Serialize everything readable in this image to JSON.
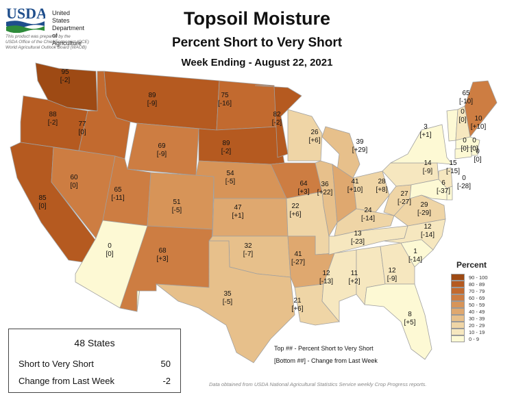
{
  "header": {
    "agency_logo_text": "USDA",
    "agency_lines": [
      "United States",
      "Department of",
      "Agriculture"
    ],
    "credit_lines": [
      "This product was prepared by the",
      "USDA Office of the Chief Economist (OCE)",
      "World Agricultural Outlook Board (WAOB)"
    ],
    "title": "Topsoil Moisture",
    "subtitle": "Percent Short to Very Short",
    "week": "Week Ending - August 22, 2021"
  },
  "legend": {
    "title": "Percent",
    "bins": [
      {
        "label": "90 - 100",
        "color": "#9e4a14"
      },
      {
        "label": "80 - 89",
        "color": "#b55a20"
      },
      {
        "label": "70 - 79",
        "color": "#c26a2f"
      },
      {
        "label": "60 - 69",
        "color": "#cd7d42"
      },
      {
        "label": "50 - 59",
        "color": "#d79458"
      },
      {
        "label": "40 - 49",
        "color": "#dfa86f"
      },
      {
        "label": "30 - 39",
        "color": "#e7c08b"
      },
      {
        "label": "20 - 29",
        "color": "#efd5a6"
      },
      {
        "label": "10 - 19",
        "color": "#f6e7bf"
      },
      {
        "label": "0 - 9",
        "color": "#fdf9d4"
      }
    ]
  },
  "states": [
    {
      "id": "WA",
      "value": "95",
      "change": "[-2]"
    },
    {
      "id": "OR",
      "value": "88",
      "change": "[-2]"
    },
    {
      "id": "CA",
      "value": "85",
      "change": "[0]"
    },
    {
      "id": "ID",
      "value": "77",
      "change": "[0]"
    },
    {
      "id": "NV",
      "value": "60",
      "change": "[0]"
    },
    {
      "id": "MT",
      "value": "89",
      "change": "[-9]"
    },
    {
      "id": "WY",
      "value": "69",
      "change": "[-9]"
    },
    {
      "id": "UT",
      "value": "65",
      "change": "[-11]"
    },
    {
      "id": "AZ",
      "value": "0",
      "change": "[0]"
    },
    {
      "id": "CO",
      "value": "51",
      "change": "[-5]"
    },
    {
      "id": "NM",
      "value": "68",
      "change": "[+3]"
    },
    {
      "id": "ND",
      "value": "75",
      "change": "[-16]"
    },
    {
      "id": "SD",
      "value": "89",
      "change": "[-2]"
    },
    {
      "id": "NE",
      "value": "54",
      "change": "[-5]"
    },
    {
      "id": "KS",
      "value": "47",
      "change": "[+1]"
    },
    {
      "id": "OK",
      "value": "32",
      "change": "[-7]"
    },
    {
      "id": "TX",
      "value": "35",
      "change": "[-5]"
    },
    {
      "id": "MN",
      "value": "82",
      "change": "[-2]"
    },
    {
      "id": "IA",
      "value": "64",
      "change": "[+3]"
    },
    {
      "id": "MO",
      "value": "22",
      "change": "[+6]"
    },
    {
      "id": "AR",
      "value": "41",
      "change": "[-27]"
    },
    {
      "id": "LA",
      "value": "21",
      "change": "[+6]"
    },
    {
      "id": "WI",
      "value": "26",
      "change": "[+6]"
    },
    {
      "id": "IL",
      "value": "36",
      "change": "[+22]"
    },
    {
      "id": "MI",
      "value": "39",
      "change": "[+29]"
    },
    {
      "id": "IN",
      "value": "41",
      "change": "[+10]"
    },
    {
      "id": "OH",
      "value": "28",
      "change": "[+8]"
    },
    {
      "id": "KY",
      "value": "24",
      "change": "[-14]"
    },
    {
      "id": "TN",
      "value": "13",
      "change": "[-23]"
    },
    {
      "id": "MS",
      "value": "12",
      "change": "[-13]"
    },
    {
      "id": "AL",
      "value": "11",
      "change": "[+2]"
    },
    {
      "id": "GA",
      "value": "12",
      "change": "[-9]"
    },
    {
      "id": "FL",
      "value": "8",
      "change": "[+5]"
    },
    {
      "id": "SC",
      "value": "1",
      "change": "[-14]"
    },
    {
      "id": "NC",
      "value": "12",
      "change": "[-14]"
    },
    {
      "id": "VA",
      "value": "29",
      "change": "[-29]"
    },
    {
      "id": "WV",
      "value": "27",
      "change": "[-27]"
    },
    {
      "id": "PA",
      "value": "14",
      "change": "[-9]"
    },
    {
      "id": "NY",
      "value": "3",
      "change": "[+1]"
    },
    {
      "id": "VT",
      "value": "0",
      "change": "[0]"
    },
    {
      "id": "NH",
      "value": "10",
      "change": "[+10]"
    },
    {
      "id": "ME",
      "value": "65",
      "change": "[-10]"
    },
    {
      "id": "MA",
      "value": "0",
      "change": "[0]"
    },
    {
      "id": "RI",
      "value": "0",
      "change": "[0]"
    },
    {
      "id": "CT",
      "value": "0",
      "change": "[0]"
    },
    {
      "id": "NJ",
      "value": "15",
      "change": "[-15]"
    },
    {
      "id": "DE",
      "value": "0",
      "change": "[-28]"
    },
    {
      "id": "MD",
      "value": "6",
      "change": "[-37]"
    }
  ],
  "summary": {
    "heading": "48 States",
    "rows": [
      {
        "label": "Short to Very Short",
        "value": "50"
      },
      {
        "label": "Change from Last Week",
        "value": "-2"
      }
    ]
  },
  "notes": {
    "top": "Top ## - Percent Short to Very Short",
    "bottom": "[Bottom ##] - Change from Last Week"
  },
  "source": "Data obtained from USDA National Agricultural Statistics Service weekly Crop Progress reports."
}
